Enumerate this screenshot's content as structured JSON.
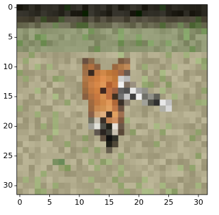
{
  "chart_data": {
    "type": "image",
    "xlim": [
      -0.5,
      31.5
    ],
    "ylim": [
      31.5,
      -0.5
    ],
    "xticks": [
      0,
      5,
      10,
      15,
      20,
      25,
      30
    ],
    "yticks": [
      0,
      5,
      10,
      15,
      20,
      25,
      30
    ]
  }
}
